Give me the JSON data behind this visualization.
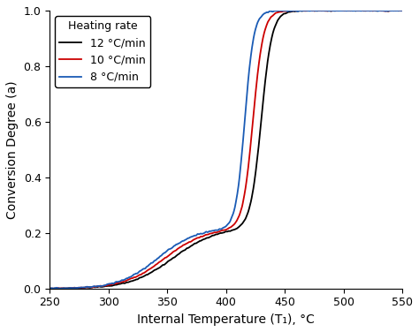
{
  "title": "",
  "xlabel": "Internal Temperature (T₁), °C",
  "ylabel": "Conversion Degree (a)",
  "xlim": [
    250,
    550
  ],
  "ylim": [
    0.0,
    1.0
  ],
  "xticks": [
    250,
    300,
    350,
    400,
    450,
    500,
    550
  ],
  "yticks": [
    0.0,
    0.2,
    0.4,
    0.6,
    0.8,
    1.0
  ],
  "legend_title": "Heating rate",
  "series": [
    {
      "label": "12 °C/min",
      "color": "#000000",
      "phase1_mid": 355,
      "phase1_steep": 0.055,
      "phase1_weight": 0.22,
      "phase2_mid": 430,
      "phase2_steep": 0.22,
      "phase2_weight": 0.78,
      "noise_scale": 0.003
    },
    {
      "label": "10 °C/min",
      "color": "#cc0000",
      "phase1_mid": 348,
      "phase1_steep": 0.057,
      "phase1_weight": 0.22,
      "phase2_mid": 423,
      "phase2_steep": 0.23,
      "phase2_weight": 0.78,
      "noise_scale": 0.003
    },
    {
      "label": "8 °C/min",
      "color": "#1a5bb5",
      "phase1_mid": 342,
      "phase1_steep": 0.06,
      "phase1_weight": 0.22,
      "phase2_mid": 416,
      "phase2_steep": 0.26,
      "phase2_weight": 0.78,
      "noise_scale": 0.004
    }
  ],
  "figure_width": 4.74,
  "figure_height": 3.76,
  "dpi": 100,
  "background_color": "#ffffff",
  "legend_fontsize": 9,
  "axis_fontsize": 10,
  "tick_fontsize": 9,
  "linewidth": 1.3
}
